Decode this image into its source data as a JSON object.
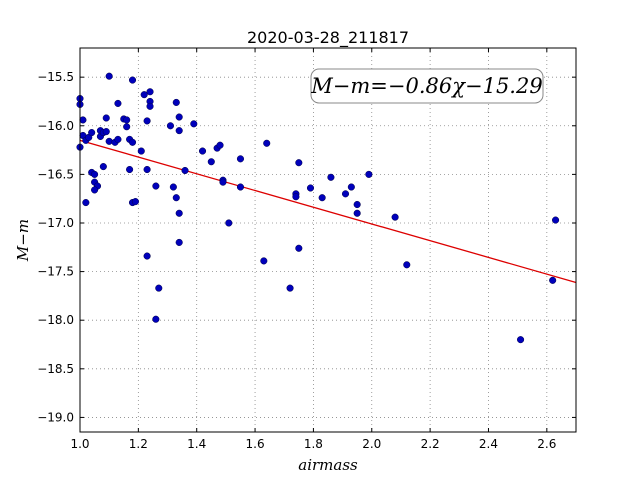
{
  "chart_data": {
    "type": "scatter",
    "title": "2020-03-28_211817",
    "xlabel": "airmass",
    "ylabel": "M−m",
    "annotation": "M−m=−0.86χ−15.29",
    "xlim": [
      1.0,
      2.7
    ],
    "ylim": [
      -19.15,
      -15.2
    ],
    "x_ticks": [
      "1.0",
      "1.2",
      "1.4",
      "1.6",
      "1.8",
      "2.0",
      "2.2",
      "2.4",
      "2.6"
    ],
    "y_ticks": [
      "−15.5",
      "−16.0",
      "−16.5",
      "−17.0",
      "−17.5",
      "−18.0",
      "−18.5",
      "−19.0"
    ],
    "grid": true,
    "fit": {
      "slope": -0.86,
      "intercept": -15.29
    },
    "colors": {
      "points": "#0000bb",
      "fit": "#dd0000"
    },
    "points": [
      [
        1.0,
        -15.72
      ],
      [
        1.0,
        -15.78
      ],
      [
        1.01,
        -15.94
      ],
      [
        1.01,
        -16.1
      ],
      [
        1.0,
        -16.22
      ],
      [
        1.02,
        -16.15
      ],
      [
        1.03,
        -16.12
      ],
      [
        1.04,
        -16.07
      ],
      [
        1.02,
        -16.79
      ],
      [
        1.04,
        -16.48
      ],
      [
        1.05,
        -16.5
      ],
      [
        1.05,
        -16.58
      ],
      [
        1.06,
        -16.62
      ],
      [
        1.05,
        -16.66
      ],
      [
        1.07,
        -16.05
      ],
      [
        1.07,
        -16.11
      ],
      [
        1.08,
        -16.07
      ],
      [
        1.09,
        -16.06
      ],
      [
        1.08,
        -16.42
      ],
      [
        1.09,
        -15.92
      ],
      [
        1.1,
        -15.49
      ],
      [
        1.1,
        -16.16
      ],
      [
        1.12,
        -16.17
      ],
      [
        1.13,
        -16.14
      ],
      [
        1.13,
        -15.77
      ],
      [
        1.15,
        -15.93
      ],
      [
        1.16,
        -15.94
      ],
      [
        1.16,
        -16.01
      ],
      [
        1.17,
        -16.14
      ],
      [
        1.18,
        -16.17
      ],
      [
        1.17,
        -16.45
      ],
      [
        1.18,
        -16.79
      ],
      [
        1.19,
        -16.78
      ],
      [
        1.18,
        -15.53
      ],
      [
        1.21,
        -16.26
      ],
      [
        1.22,
        -15.68
      ],
      [
        1.23,
        -15.95
      ],
      [
        1.24,
        -15.65
      ],
      [
        1.24,
        -15.75
      ],
      [
        1.24,
        -15.8
      ],
      [
        1.23,
        -16.45
      ],
      [
        1.23,
        -17.34
      ],
      [
        1.26,
        -16.62
      ],
      [
        1.27,
        -17.67
      ],
      [
        1.26,
        -17.99
      ],
      [
        1.31,
        -16.0
      ],
      [
        1.32,
        -16.63
      ],
      [
        1.33,
        -15.76
      ],
      [
        1.34,
        -15.91
      ],
      [
        1.34,
        -16.05
      ],
      [
        1.33,
        -16.74
      ],
      [
        1.34,
        -16.9
      ],
      [
        1.34,
        -17.2
      ],
      [
        1.36,
        -16.46
      ],
      [
        1.39,
        -15.98
      ],
      [
        1.42,
        -16.26
      ],
      [
        1.45,
        -16.37
      ],
      [
        1.47,
        -16.23
      ],
      [
        1.48,
        -16.2
      ],
      [
        1.49,
        -16.56
      ],
      [
        1.49,
        -16.58
      ],
      [
        1.51,
        -17.0
      ],
      [
        1.55,
        -16.34
      ],
      [
        1.55,
        -16.63
      ],
      [
        1.63,
        -17.39
      ],
      [
        1.64,
        -16.18
      ],
      [
        1.72,
        -17.67
      ],
      [
        1.74,
        -16.7
      ],
      [
        1.74,
        -16.73
      ],
      [
        1.75,
        -16.38
      ],
      [
        1.75,
        -17.26
      ],
      [
        1.79,
        -16.64
      ],
      [
        1.83,
        -16.74
      ],
      [
        1.86,
        -16.53
      ],
      [
        1.91,
        -16.7
      ],
      [
        1.93,
        -16.63
      ],
      [
        1.95,
        -16.81
      ],
      [
        1.95,
        -16.9
      ],
      [
        1.99,
        -16.5
      ],
      [
        2.08,
        -16.94
      ],
      [
        2.12,
        -17.43
      ],
      [
        2.51,
        -18.2
      ],
      [
        2.62,
        -17.59
      ],
      [
        2.63,
        -16.97
      ]
    ]
  }
}
